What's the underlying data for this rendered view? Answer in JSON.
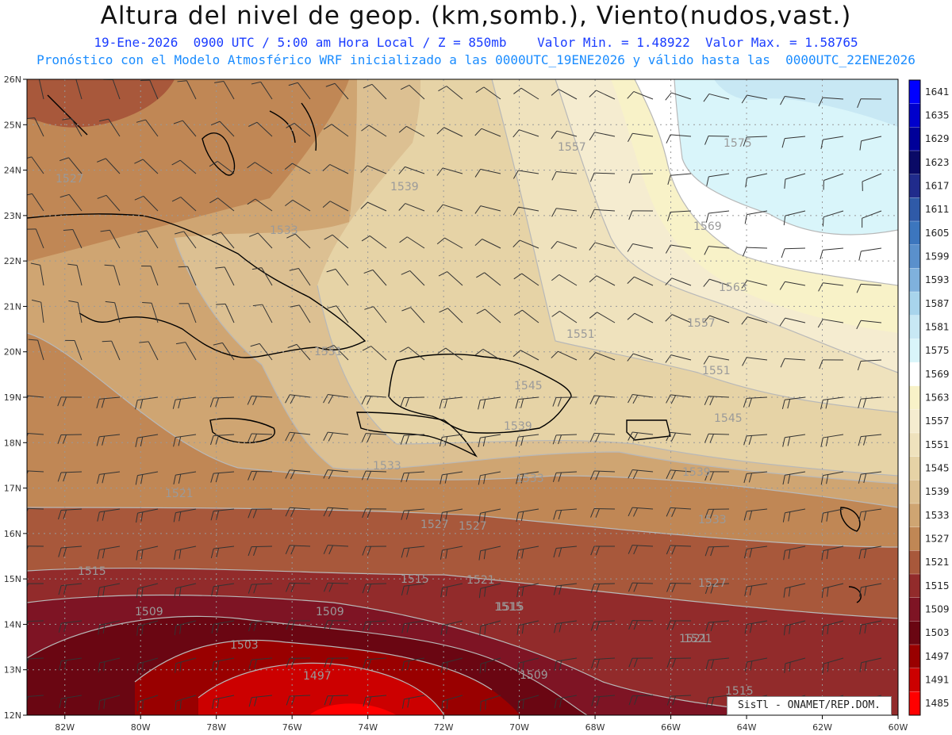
{
  "header": {
    "title": "Altura del nivel de geop. (km,somb.), Viento(nudos,vast.)",
    "line1": "19-Ene-2026  0900 UTC / 5:00 am Hora Local / Z = 850mb    Valor Min. = 1.48922  Valor Max. = 1.58765",
    "line2": "Pronóstico con el Modelo Atmosférico WRF inicializado a las 0000UTC_19ENE2026 y válido hasta las  0000UTC_22ENE2026"
  },
  "map": {
    "lon_range": [
      -83,
      -60
    ],
    "lat_range": [
      12,
      26
    ],
    "lon_labels": [
      "82W",
      "80W",
      "78W",
      "76W",
      "74W",
      "72W",
      "70W",
      "68W",
      "66W",
      "64W",
      "62W",
      "60W"
    ],
    "lat_labels": [
      "12N",
      "13N",
      "14N",
      "15N",
      "16N",
      "17N",
      "18N",
      "19N",
      "20N",
      "21N",
      "22N",
      "23N",
      "24N",
      "25N",
      "26N"
    ],
    "contour_labels": [
      "1527",
      "1539",
      "1533",
      "1557",
      "1575",
      "1569",
      "1563",
      "1557",
      "1551",
      "1551",
      "1545",
      "1539",
      "1533",
      "1521",
      "1527",
      "1533",
      "1539",
      "1533",
      "1527",
      "1521",
      "1515",
      "1515",
      "1521",
      "1515",
      "1509",
      "1509",
      "1515",
      "1527",
      "1503",
      "1497",
      "1509",
      "1521",
      "1515",
      "1551",
      "1545"
    ]
  },
  "colorbar": {
    "labels": [
      "1641",
      "1635",
      "1629",
      "1623",
      "1617",
      "1611",
      "1605",
      "1599",
      "1593",
      "1587",
      "1581",
      "1575",
      "1569",
      "1563",
      "1557",
      "1551",
      "1545",
      "1539",
      "1533",
      "1527",
      "1521",
      "1515",
      "1509",
      "1503",
      "1497",
      "1491",
      "1485"
    ],
    "colors": [
      "#0000ff",
      "#0000cc",
      "#000099",
      "#0a0a66",
      "#202b8c",
      "#2f5aa8",
      "#3c76be",
      "#5a90cc",
      "#7fb1dd",
      "#a8d4ec",
      "#c8e8f4",
      "#d9f5fa",
      "#ffffff",
      "#f8f2c8",
      "#f5ecd0",
      "#efe2bd",
      "#e6d3a6",
      "#dcc092",
      "#cfa572",
      "#c08755",
      "#a8583b",
      "#922b2b",
      "#7e1424",
      "#6a0612",
      "#990000",
      "#cc0000",
      "#ff0000"
    ]
  },
  "credit": "SisTl - ONAMET/REP.DOM."
}
